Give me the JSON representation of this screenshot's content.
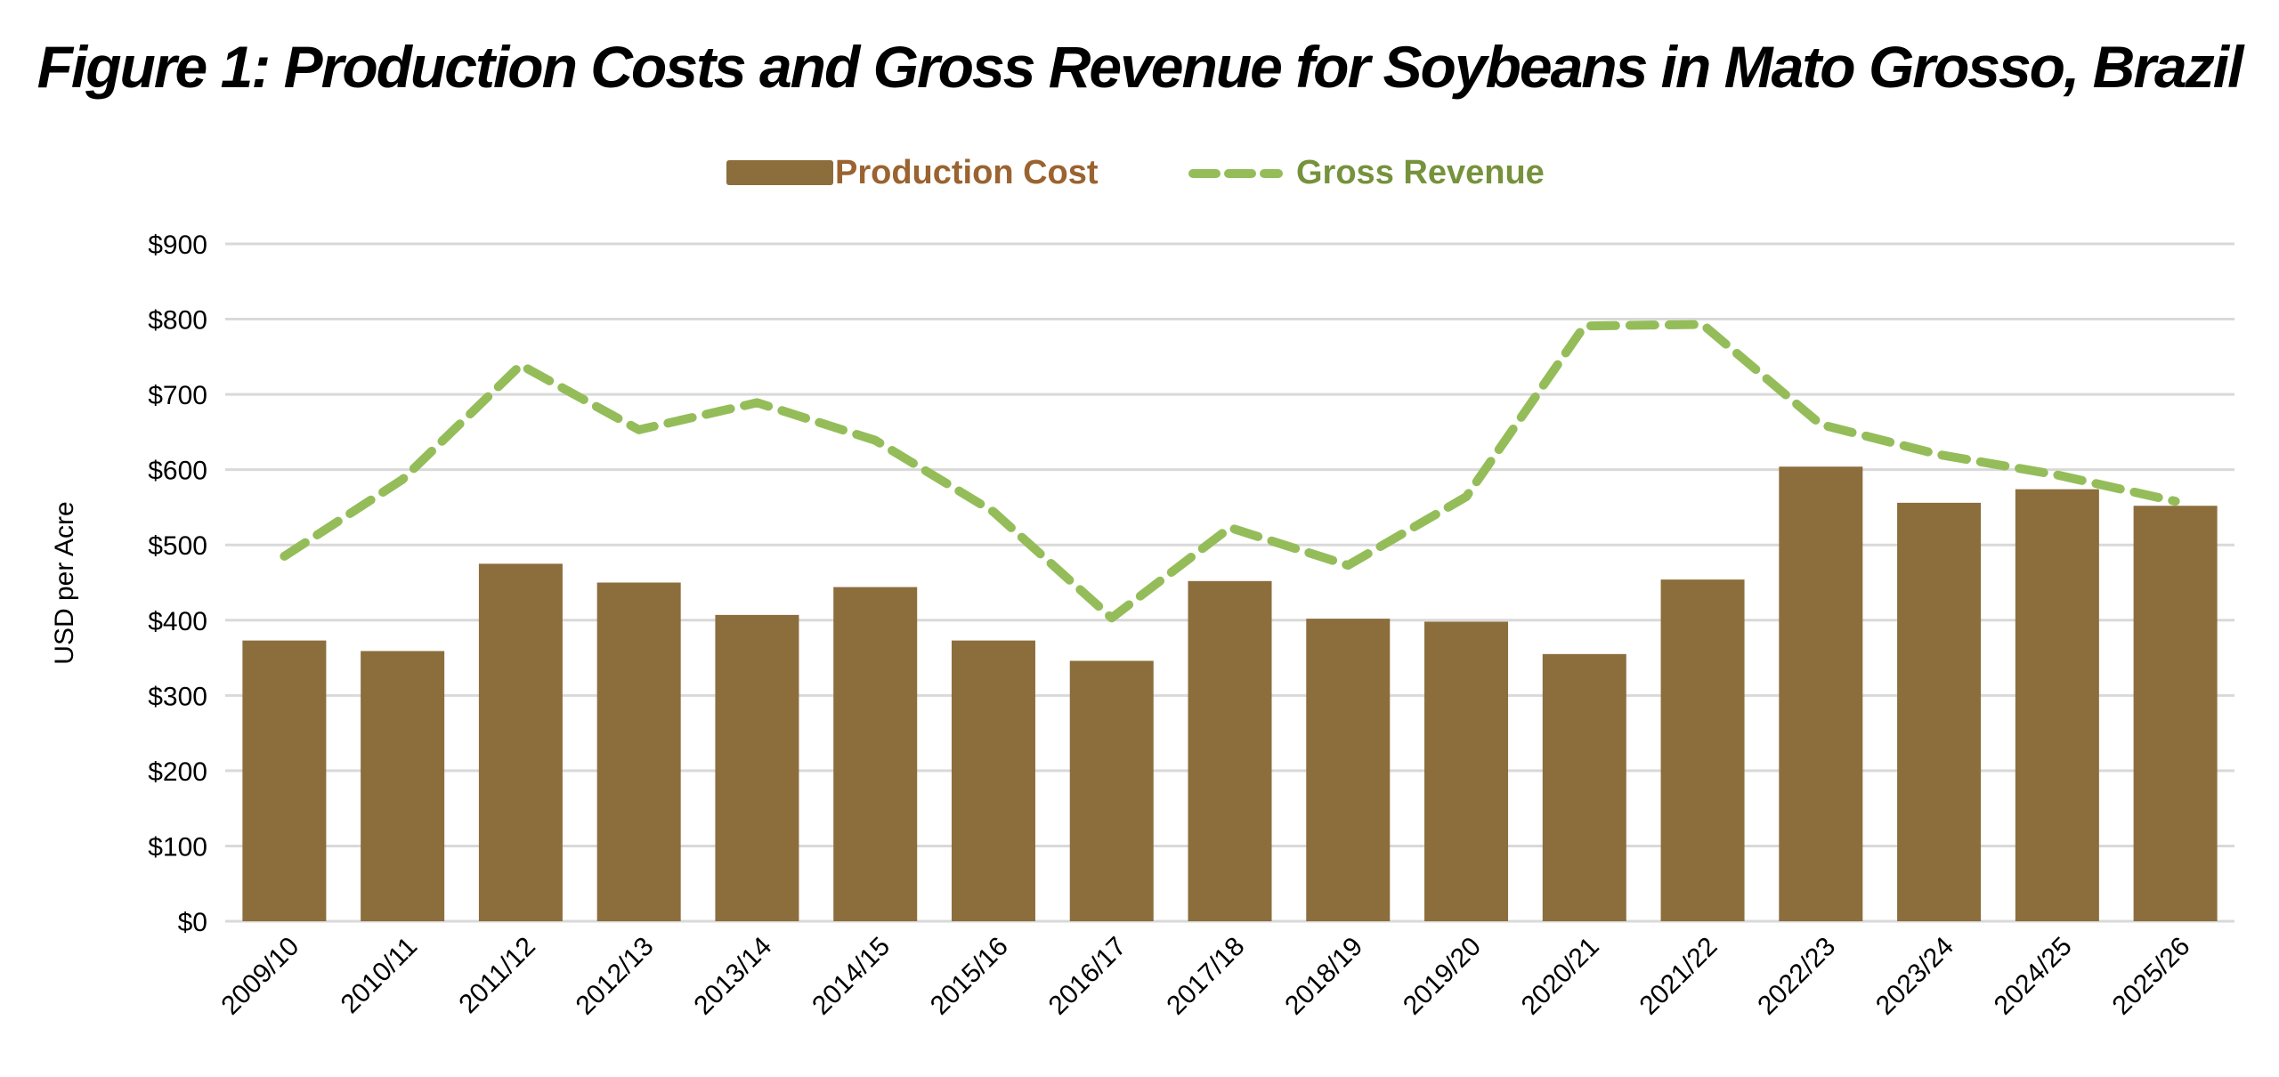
{
  "chart_data": {
    "type": "bar",
    "title": "Figure 1: Production Costs and Gross Revenue for Soybeans in Mato Grosso, Brazil",
    "xlabel": "",
    "ylabel": "USD per Acre",
    "ylim": [
      0,
      900
    ],
    "yticks": [
      "$0",
      "$100",
      "$200",
      "$300",
      "$400",
      "$500",
      "$600",
      "$700",
      "$800",
      "$900"
    ],
    "grid": true,
    "legend_position": "top-center",
    "categories": [
      "2009/10",
      "2010/11",
      "2011/12",
      "2012/13",
      "2013/14",
      "2014/15",
      "2015/16",
      "2016/17",
      "2017/18",
      "2018/19",
      "2019/20",
      "2020/21",
      "2021/22",
      "2022/23",
      "2023/24",
      "2024/25",
      "2025/26"
    ],
    "series": [
      {
        "name": "Production Cost",
        "type": "bar",
        "color": "#8c6d3c",
        "label_color": "#9a6330",
        "values": [
          373,
          359,
          475,
          450,
          407,
          444,
          373,
          346,
          452,
          402,
          398,
          355,
          454,
          604,
          556,
          574,
          552
        ]
      },
      {
        "name": "Gross Revenue",
        "type": "line",
        "style": "dashed",
        "color": "#94bd5a",
        "label_color": "#76923c",
        "values": [
          485,
          587,
          739,
          653,
          689,
          639,
          544,
          403,
          523,
          473,
          564,
          791,
          793,
          660,
          620,
          593,
          558
        ]
      }
    ]
  }
}
